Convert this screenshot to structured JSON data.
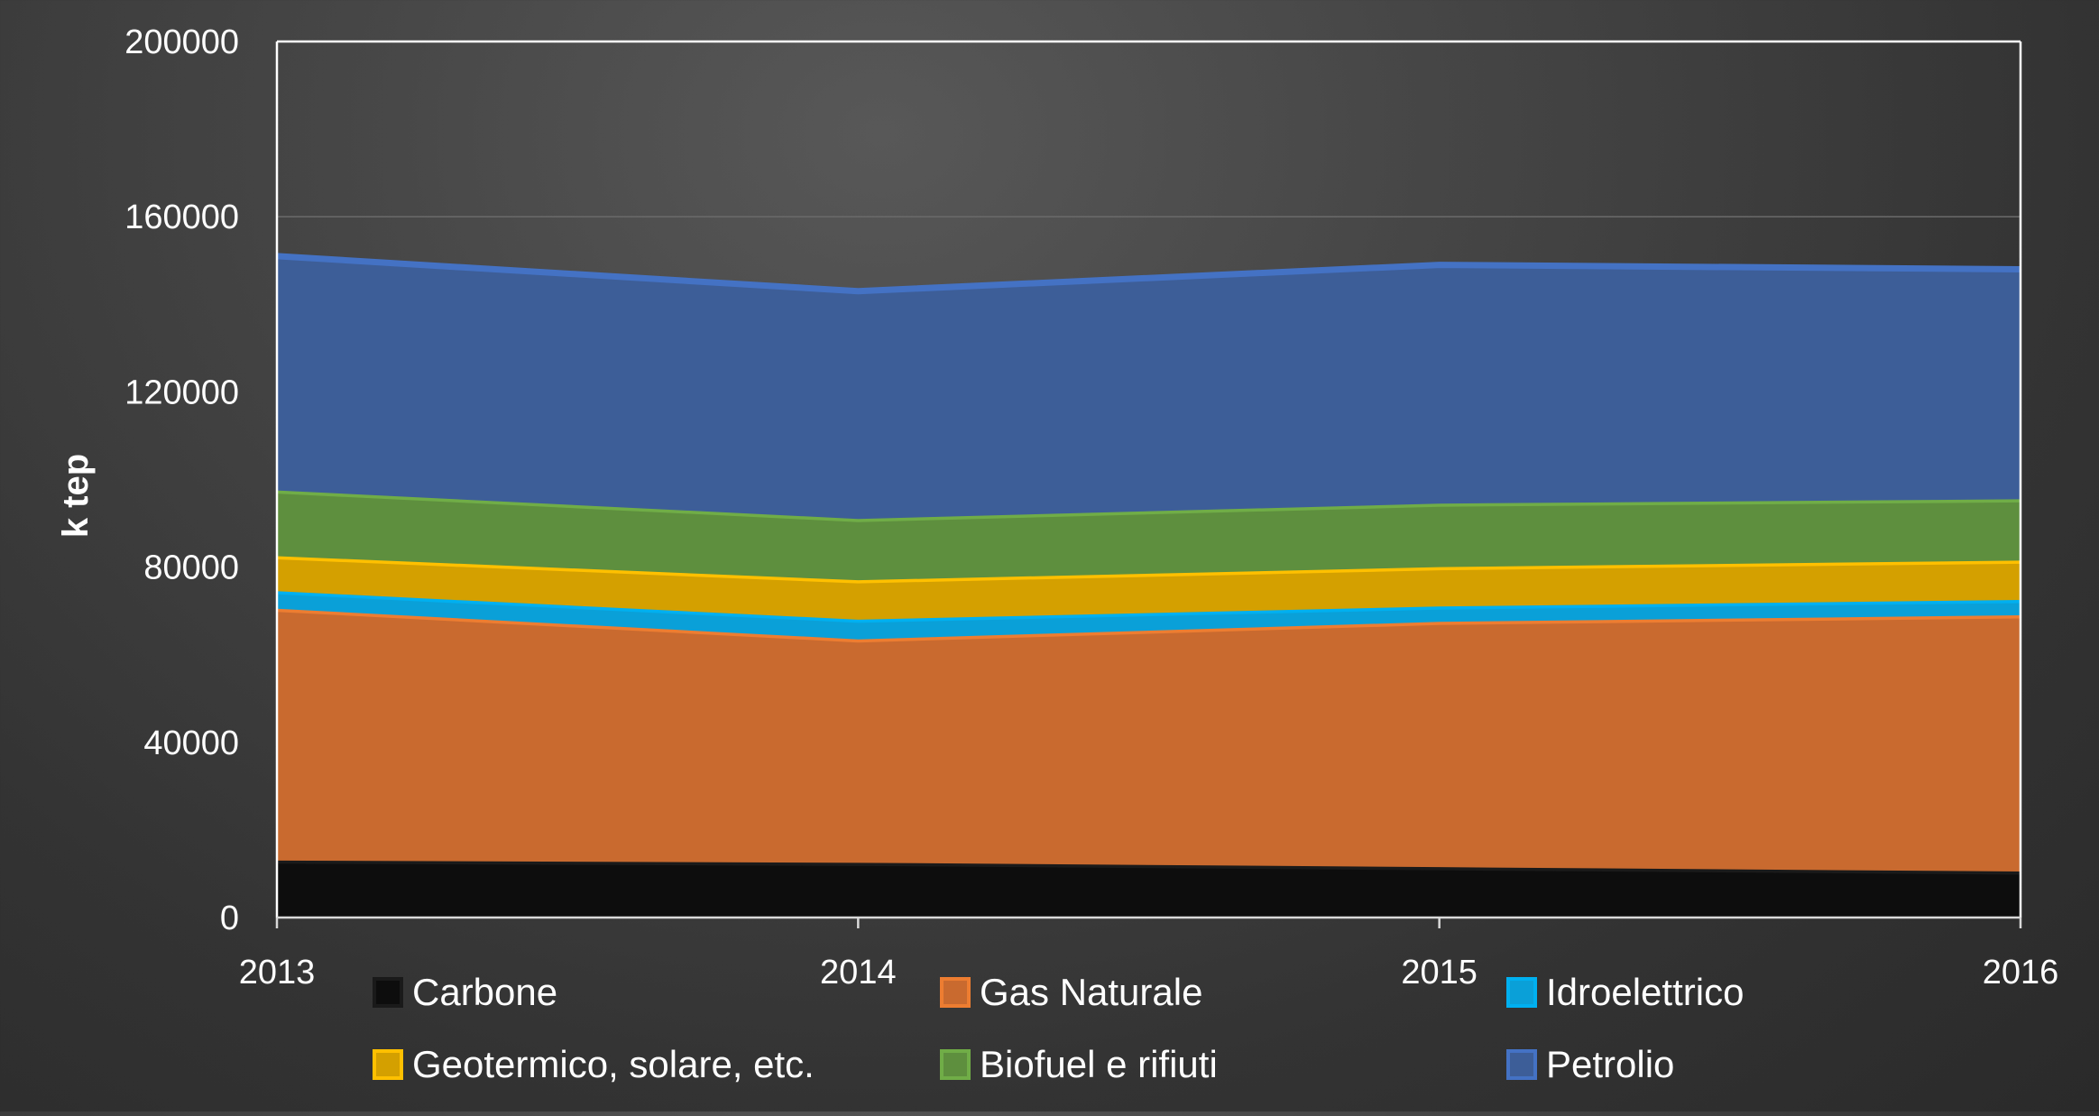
{
  "chart_data": {
    "type": "area",
    "stacked": true,
    "x": [
      "2013",
      "2014",
      "2015",
      "2016"
    ],
    "ylabel": "k tep",
    "xlabel": "",
    "ylim": [
      0,
      200000
    ],
    "yticks": [
      0,
      40000,
      80000,
      120000,
      160000,
      200000
    ],
    "ytick_labels": [
      "0",
      "40000",
      "80000",
      "120000",
      "160000",
      "200000"
    ],
    "grid": "horizontal",
    "legend_position": "bottom",
    "series": [
      {
        "name": "Carbone",
        "values": [
          13000,
          12500,
          11500,
          10500
        ],
        "color": "#0d0d0d",
        "stroke": "#1a1a1a"
      },
      {
        "name": "Gas Naturale",
        "values": [
          57500,
          51000,
          56000,
          58500
        ],
        "color": "#c96a2f",
        "stroke": "#ed7d31"
      },
      {
        "name": "Idroelettrico",
        "values": [
          4000,
          4500,
          3500,
          3500
        ],
        "color": "#0aa0d8",
        "stroke": "#00b0f0"
      },
      {
        "name": "Geotermico, solare, etc.",
        "values": [
          8000,
          9000,
          9000,
          9000
        ],
        "color": "#d4a000",
        "stroke": "#ffc000"
      },
      {
        "name": "Biofuel e rifiuti",
        "values": [
          15000,
          14000,
          14500,
          14000
        ],
        "color": "#5e8f3e",
        "stroke": "#70ad47"
      },
      {
        "name": "Petrolio",
        "values": [
          53500,
          52000,
          54500,
          52500
        ],
        "color": "#3d5e98",
        "stroke": "#4472c4"
      }
    ]
  }
}
